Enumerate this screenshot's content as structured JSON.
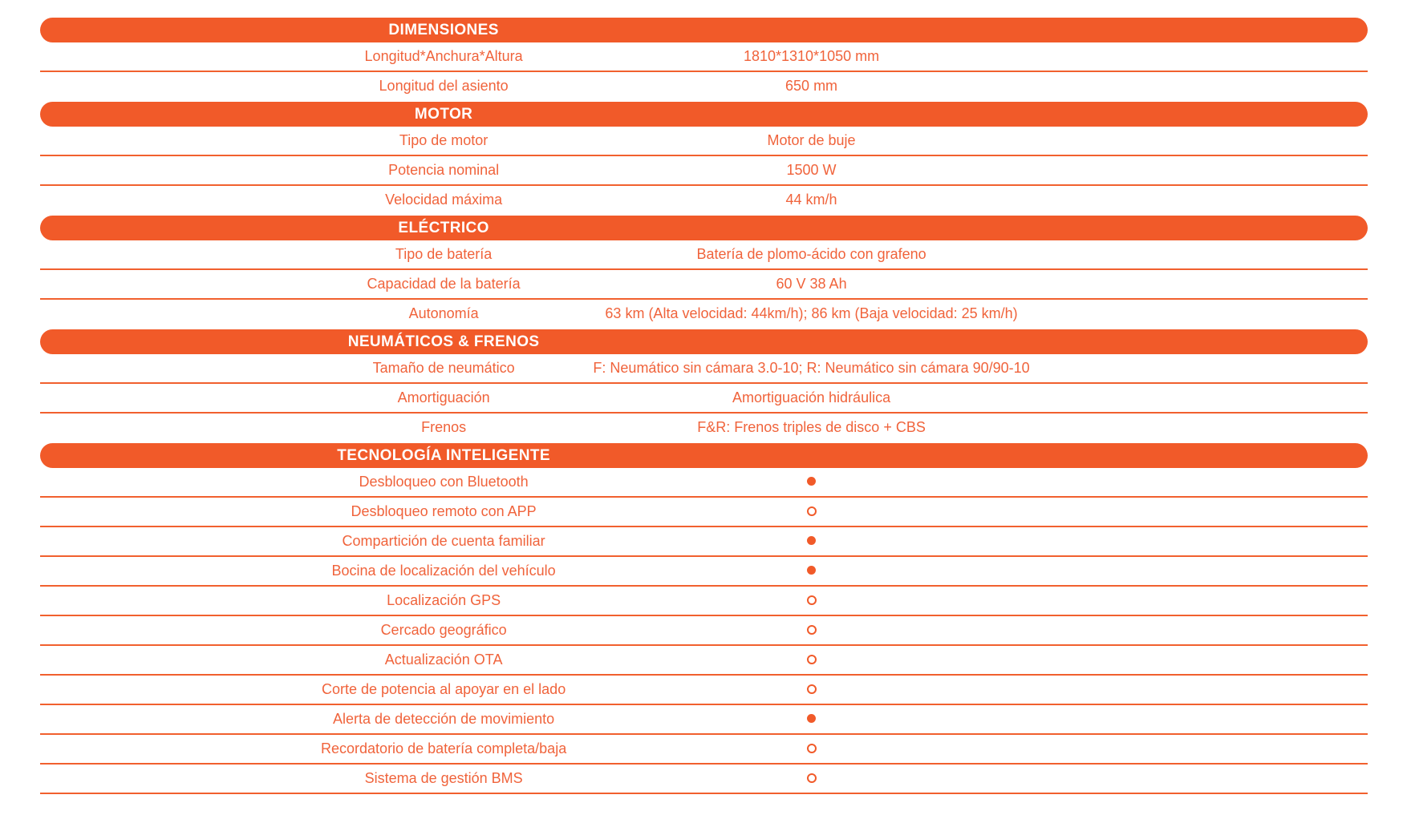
{
  "colors": {
    "bar_background": "#F15A29",
    "bar_text": "#FFFFFF",
    "row_text": "#F0633B",
    "divider": "#F1602E",
    "dot": "#F15A29"
  },
  "sections": [
    {
      "title": "DIMENSIONES",
      "rows": [
        {
          "label": "Longitud*Anchura*Altura",
          "value": "1810*1310*1050 mm"
        },
        {
          "label": "Longitud del asiento",
          "value": "650 mm"
        }
      ]
    },
    {
      "title": "MOTOR",
      "rows": [
        {
          "label": "Tipo de motor",
          "value": "Motor de buje"
        },
        {
          "label": "Potencia nominal",
          "value": "1500 W"
        },
        {
          "label": "Velocidad máxima",
          "value": "44 km/h"
        }
      ]
    },
    {
      "title": "ELÉCTRICO",
      "rows": [
        {
          "label": "Tipo de batería",
          "value": "Batería de plomo-ácido con grafeno"
        },
        {
          "label": "Capacidad de la batería",
          "value": "60 V 38 Ah"
        },
        {
          "label": "Autonomía",
          "value": "63 km (Alta velocidad: 44km/h); 86 km (Baja velocidad: 25 km/h)"
        }
      ]
    },
    {
      "title": "NEUMÁTICOS & FRENOS",
      "rows": [
        {
          "label": "Tamaño de neumático",
          "value": "F: Neumático sin cámara 3.0-10; R: Neumático sin cámara 90/90-10"
        },
        {
          "label": "Amortiguación",
          "value": "Amortiguación hidráulica"
        },
        {
          "label": "Frenos",
          "value": "F&R: Frenos triples de disco + CBS"
        }
      ]
    },
    {
      "title": "TECNOLOGÍA INTELIGENTE",
      "rows": [
        {
          "label": "Desbloqueo con Bluetooth",
          "dot": "filled"
        },
        {
          "label": "Desbloqueo remoto con APP",
          "dot": "open"
        },
        {
          "label": "Compartición de cuenta familiar",
          "dot": "filled"
        },
        {
          "label": "Bocina de localización del vehículo",
          "dot": "filled"
        },
        {
          "label": "Localización GPS",
          "dot": "open"
        },
        {
          "label": "Cercado geográfico",
          "dot": "open"
        },
        {
          "label": "Actualización OTA",
          "dot": "open"
        },
        {
          "label": "Corte de potencia al apoyar en el lado",
          "dot": "open"
        },
        {
          "label": "Alerta de detección de movimiento",
          "dot": "filled"
        },
        {
          "label": "Recordatorio de batería completa/baja",
          "dot": "open"
        },
        {
          "label": "Sistema de gestión BMS",
          "dot": "open"
        }
      ]
    }
  ]
}
